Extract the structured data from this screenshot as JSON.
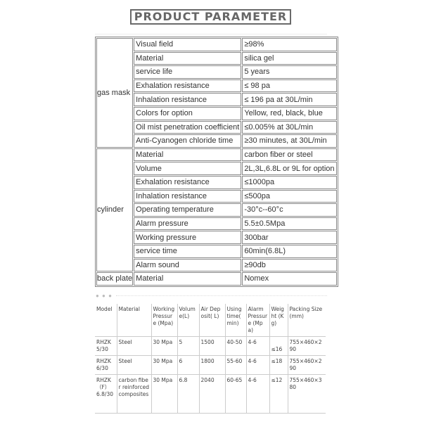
{
  "title": "PRODUCT PARAMETER",
  "spec_groups": [
    {
      "name": "gas mask",
      "rows": [
        [
          "Visual field",
          "≥98%"
        ],
        [
          "Material",
          "silica gel"
        ],
        [
          "service life",
          "5 years"
        ],
        [
          "Exhalation resistance",
          "≤ 98 pa"
        ],
        [
          "Inhalation resistance",
          "≤ 196 pa at 30L/min"
        ],
        [
          "Colors for option",
          "Yellow, red, black, blue"
        ],
        [
          "Oil mist penetration coefficient",
          "≤0.005% at 30L/min"
        ],
        [
          "Anti-Cyanogen chloride time",
          "≥30 minutes, at 30L/min"
        ]
      ]
    },
    {
      "name": "cylinder",
      "rows": [
        [
          "Material",
          "carbon fiber or steel"
        ],
        [
          "Volume",
          "2L,3L,6.8L or 9L for option"
        ],
        [
          "Exhalation resistance",
          "≤1000pa"
        ],
        [
          "Inhalation resistance",
          "≤500pa"
        ],
        [
          "Operating temperature",
          "-30°c--60°c"
        ],
        [
          "Alarm pressure",
          "5.5±0.5Mpa"
        ],
        [
          "Working pressure",
          "300bar"
        ],
        [
          "service time",
          "60min(6.8L)"
        ],
        [
          "Alarm sound",
          "≥90db"
        ]
      ]
    },
    {
      "name": "back plate",
      "rows": [
        [
          "Material",
          "Nomex"
        ]
      ]
    }
  ],
  "dots": "● ● ●",
  "models_table": {
    "headers": [
      "Model",
      "Material",
      "Working Pressure (Mpa)",
      "Volum e(L)",
      "Air Deposit( L)",
      "Using time( min)",
      "Alarm Pressur e (Mpa)",
      "Weig ht (Kg)",
      "Packing Size(mm)"
    ],
    "rows": [
      [
        "RHZK 5/30",
        "Steel",
        "30 Mpa",
        "5",
        "1500",
        "40-50",
        "4-6",
        "≤16",
        "755×460×290"
      ],
      [
        "RHZK 6/30",
        "Steel",
        "30 Mpa",
        "6",
        "1800",
        "55-60",
        "4-6",
        "≤18",
        "755×460×290"
      ],
      [
        "RHZK （F） 6.8/30",
        "carbon fiber reinforced composites",
        "30 Mpa",
        "6.8",
        "2040",
        "60-65",
        "4-6",
        "≤12",
        "755×460×380"
      ]
    ]
  }
}
